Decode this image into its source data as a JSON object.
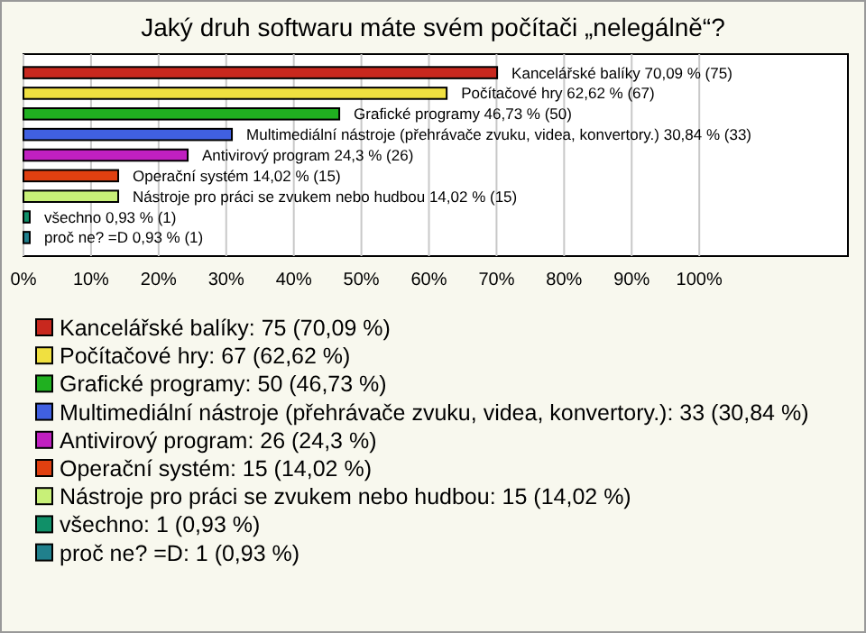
{
  "chart_data": {
    "type": "bar",
    "orientation": "horizontal",
    "title": "Jaký druh softwaru máte svém počítači „nelegálně“?",
    "categories": [
      "Kancelářské balíky",
      "Počítačové hry",
      "Grafické programy",
      "Multimediální nástroje (přehrávače zvuku, videa, konvertory.)",
      "Antivirový program",
      "Operační systém",
      "Nástroje pro práci se zvukem nebo hudbou",
      "všechno",
      "proč ne? =D"
    ],
    "values": [
      70.09,
      62.62,
      46.73,
      30.84,
      24.3,
      14.02,
      14.02,
      0.93,
      0.93
    ],
    "colors": [
      "#c8281e",
      "#f0e040",
      "#20b020",
      "#4060e0",
      "#c020c0",
      "#e04010",
      "#c8f078",
      "#109068",
      "#20808c"
    ],
    "value_labels": [
      "70,09 % (75)",
      "62,62 % (67)",
      "46,73 % (50)",
      "30,84 % (33)",
      "24,3 % (26)",
      "14,02 % (15)",
      "14,02 % (15)",
      "0,93 % (1)",
      "0,93 % (1)"
    ],
    "xlim": [
      0,
      122
    ],
    "xticks": [
      {
        "value": 0,
        "label": "0%"
      },
      {
        "value": 10,
        "label": "10%"
      },
      {
        "value": 20,
        "label": "20%"
      },
      {
        "value": 30,
        "label": "30%"
      },
      {
        "value": 40,
        "label": "40%"
      },
      {
        "value": 50,
        "label": "50%"
      },
      {
        "value": 60,
        "label": "60%"
      },
      {
        "value": 70,
        "label": "70%"
      },
      {
        "value": 80,
        "label": "80%"
      },
      {
        "value": 90,
        "label": "90%"
      },
      {
        "value": 100,
        "label": "100%"
      }
    ],
    "grid": "x",
    "tick_labels": "x",
    "annotations": [
      "Kancelářské balíky: 75 (70,09 %)",
      "Počítačové hry: 67 (62,62 %)",
      "Grafické programy: 50 (46,73 %)",
      "Multimediální nástroje (přehrávače zvuku, videa, konvertory.): 33 (30,84 %)",
      "Antivirový program: 26 (24,3 %)",
      "Operační systém: 15 (14,02 %)",
      "Nástroje pro práci se zvukem nebo hudbou: 15 (14,02 %)",
      "všechno: 1 (0,93 %)",
      "proč ne? =D: 1 (0,93 %)"
    ]
  }
}
